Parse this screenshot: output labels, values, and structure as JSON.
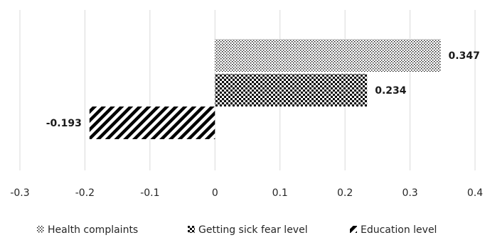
{
  "chart_data": {
    "type": "bar",
    "orientation": "horizontal",
    "title": "",
    "xlabel": "",
    "ylabel": "",
    "xlim": [
      -0.3,
      0.4
    ],
    "x_ticks": [
      "-0.3",
      "-0.2",
      "-0.1",
      "0",
      "0.1",
      "0.2",
      "0.3",
      "0.4"
    ],
    "grid": "vertical",
    "legend_position": "bottom",
    "series": [
      {
        "name": "Health complaints",
        "value": 0.347,
        "label": "0.347",
        "pattern": "fine-dots"
      },
      {
        "name": "Getting sick fear level",
        "value": 0.234,
        "label": "0.234",
        "pattern": "coarse-dots"
      },
      {
        "name": "Education level",
        "value": -0.193,
        "label": "-0.193",
        "pattern": "diagonal-stripes"
      }
    ],
    "colors": {
      "grid": "#d9d9d9",
      "bar": "#000000",
      "text": "#262626"
    }
  }
}
